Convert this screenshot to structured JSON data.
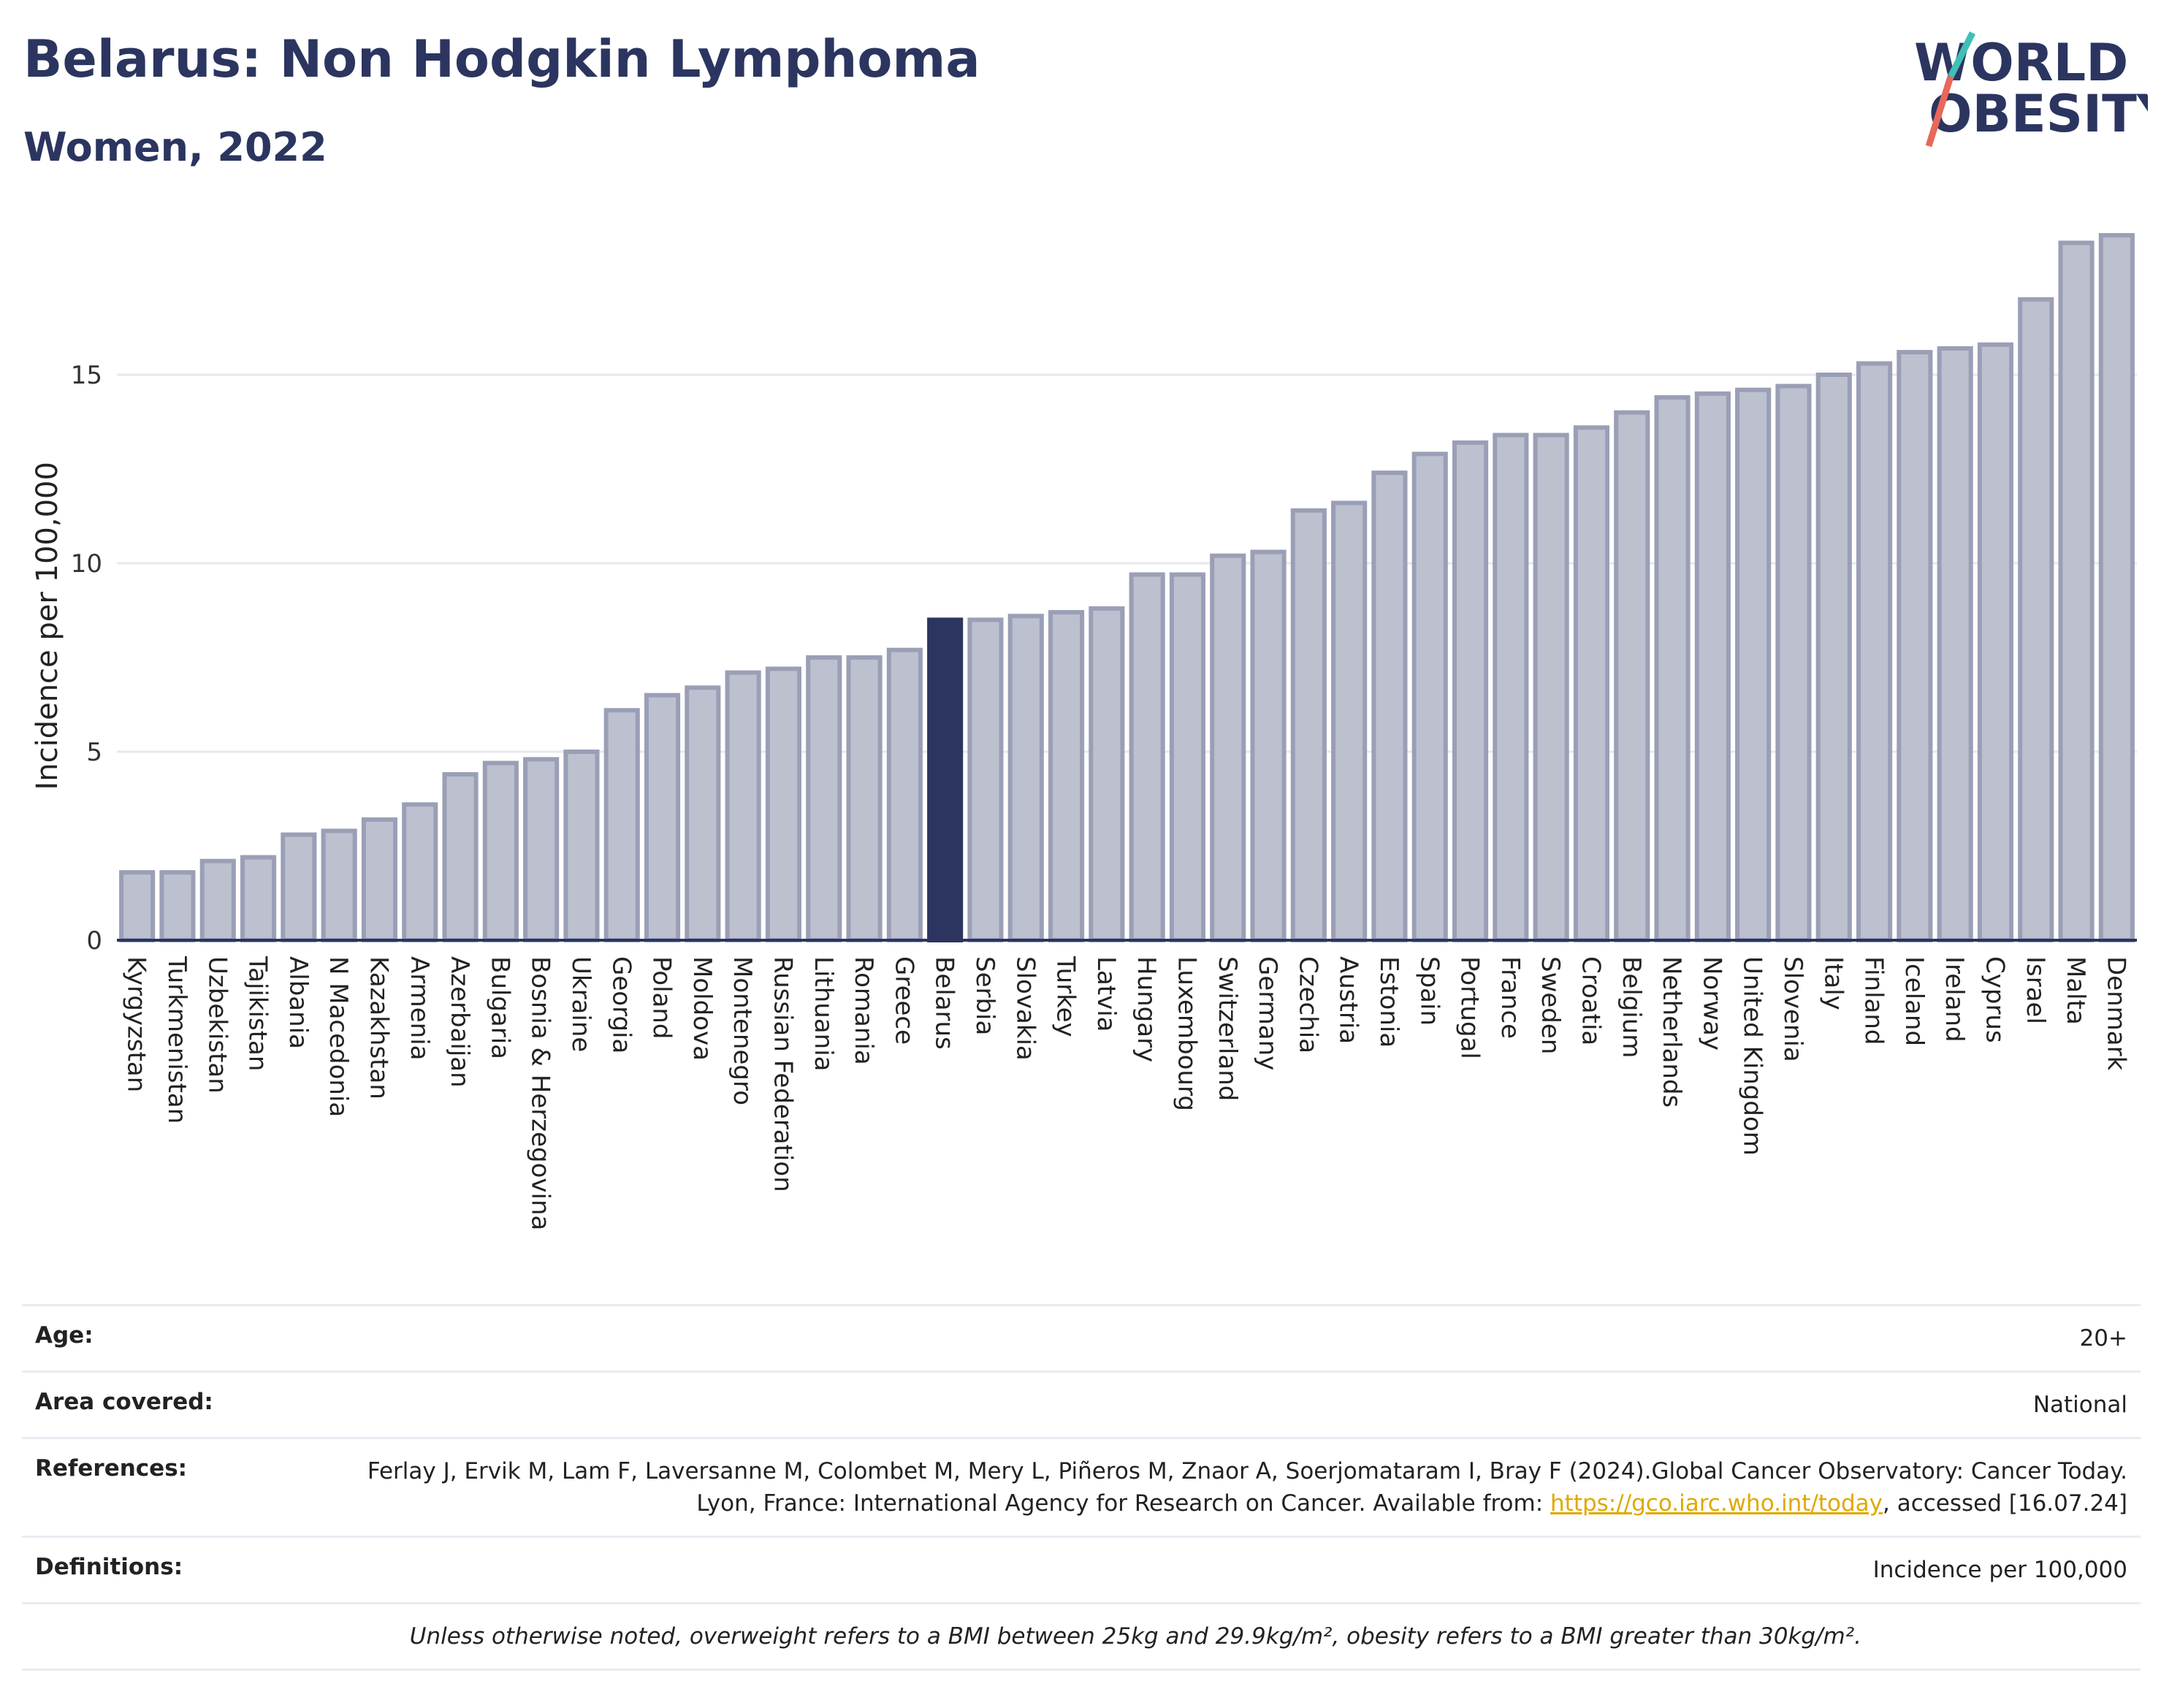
{
  "header": {
    "title": "Belarus: Non Hodgkin Lymphoma",
    "subtitle": "Women, 2022"
  },
  "logo": {
    "line1": "WORLD",
    "line2": "OBESITY"
  },
  "chart_data": {
    "type": "bar",
    "ylabel": "Incidence per 100,000",
    "ylim": [
      0,
      19
    ],
    "yticks": [
      0,
      5,
      10,
      15
    ],
    "grid": true,
    "highlight": "Belarus",
    "colors": {
      "bar": "#bcc0cf",
      "bar_border": "#9a9fb6",
      "highlight": "#2b3560",
      "grid": "#e6e8ee"
    },
    "categories": [
      "Kyrgyzstan",
      "Turkmenistan",
      "Uzbekistan",
      "Tajikistan",
      "Albania",
      "N Macedonia",
      "Kazakhstan",
      "Armenia",
      "Azerbaijan",
      "Bulgaria",
      "Bosnia & Herzegovina",
      "Ukraine",
      "Georgia",
      "Poland",
      "Moldova",
      "Montenegro",
      "Russian Federation",
      "Lithuania",
      "Romania",
      "Greece",
      "Belarus",
      "Serbia",
      "Slovakia",
      "Turkey",
      "Latvia",
      "Hungary",
      "Luxembourg",
      "Switzerland",
      "Germany",
      "Czechia",
      "Austria",
      "Estonia",
      "Spain",
      "Portugal",
      "France",
      "Sweden",
      "Croatia",
      "Belgium",
      "Netherlands",
      "Norway",
      "United Kingdom",
      "Slovenia",
      "Italy",
      "Finland",
      "Iceland",
      "Ireland",
      "Cyprus",
      "Israel",
      "Malta",
      "Denmark"
    ],
    "values": [
      1.8,
      1.8,
      2.1,
      2.2,
      2.8,
      2.9,
      3.2,
      3.6,
      4.4,
      4.7,
      4.8,
      5.0,
      6.1,
      6.5,
      6.7,
      7.1,
      7.2,
      7.5,
      7.5,
      7.7,
      8.5,
      8.5,
      8.6,
      8.7,
      8.8,
      9.7,
      9.7,
      10.2,
      10.3,
      11.4,
      11.6,
      12.4,
      12.9,
      13.2,
      13.4,
      13.4,
      13.6,
      14.0,
      14.4,
      14.5,
      14.6,
      14.7,
      15.0,
      15.3,
      15.6,
      15.7,
      15.8,
      17.0,
      18.5,
      18.7
    ]
  },
  "meta": {
    "age_label": "Age:",
    "age_value": "20+",
    "area_label": "Area covered:",
    "area_value": "National",
    "references_label": "References:",
    "references_text": "Ferlay J, Ervik M, Lam F, Laversanne M, Colombet M, Mery L, Piñeros M, Znaor A, Soerjomataram I, Bray F (2024).Global Cancer Observatory: Cancer Today. Lyon, France: International Agency for Research on Cancer. Available from: ",
    "references_link": "https://gco.iarc.who.int/today",
    "references_suffix": ", accessed [16.07.24]",
    "definitions_label": "Definitions:",
    "definitions_value": "Incidence per 100,000",
    "note": "Unless otherwise noted, overweight refers to a BMI between 25kg and 29.9kg/m², obesity refers to a BMI greater than 30kg/m²."
  }
}
